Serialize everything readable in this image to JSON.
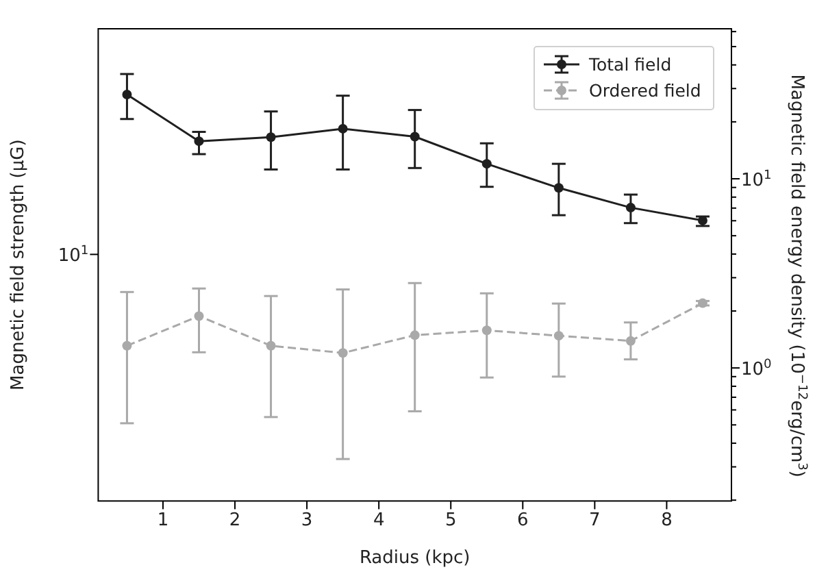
{
  "chart_data": {
    "type": "line",
    "xlabel": "Radius (kpc)",
    "ylabel": "Magnetic field strength (μG)",
    "y2label": "Magnetic field energy density (10$^{−12}$erg/cm$^{3}$)",
    "x": [
      0.5,
      1.5,
      2.5,
      3.5,
      4.5,
      5.5,
      6.5,
      7.5,
      8.5
    ],
    "xlim": [
      0.1,
      8.9
    ],
    "xticks": [
      1,
      2,
      3,
      4,
      5,
      6,
      7,
      8
    ],
    "annotations": [
      "10$^{1}$"
    ],
    "y2lim": [
      0.198,
      62.1
    ],
    "y2ticks": [
      {
        "value": 0.2,
        "label": null
      },
      {
        "value": 0.3,
        "label": null
      },
      {
        "value": 0.4,
        "label": null
      },
      {
        "value": 0.5,
        "label": null
      },
      {
        "value": 0.6,
        "label": null
      },
      {
        "value": 0.7,
        "label": null
      },
      {
        "value": 0.8,
        "label": null
      },
      {
        "value": 0.9,
        "label": null
      },
      {
        "value": 1,
        "label": "10$^{0}$"
      },
      {
        "value": 2,
        "label": null
      },
      {
        "value": 3,
        "label": null
      },
      {
        "value": 4,
        "label": null
      },
      {
        "value": 5,
        "label": null
      },
      {
        "value": 6,
        "label": null
      },
      {
        "value": 7,
        "label": null
      },
      {
        "value": 8,
        "label": null
      },
      {
        "value": 9,
        "label": null
      },
      {
        "value": 10,
        "label": "10$^{1}$"
      },
      {
        "value": 20,
        "label": null
      },
      {
        "value": 30,
        "label": null
      },
      {
        "value": 40,
        "label": null
      },
      {
        "value": 50,
        "label": null
      },
      {
        "value": 60,
        "label": null
      }
    ],
    "log": "y2",
    "grid": false,
    "legend": "top right",
    "marker": "circle",
    "series": [
      {
        "name": "Total field",
        "color": "#1f1f1f",
        "line_style": "solid",
        "axis": "y2",
        "values": [
          27.9,
          15.8,
          16.6,
          18.4,
          16.7,
          12.0,
          8.95,
          7.04,
          6.02
        ],
        "errors": [
          [
            20.7,
            35.8
          ],
          [
            13.5,
            17.7
          ],
          [
            11.2,
            22.7
          ],
          [
            11.2,
            27.5
          ],
          [
            11.4,
            23.1
          ],
          [
            9.07,
            15.4
          ],
          [
            6.42,
            12.0
          ],
          [
            5.83,
            8.25
          ],
          [
            5.63,
            6.32
          ]
        ]
      },
      {
        "name": "Ordered field",
        "color": "#a9a9a9",
        "line_style": "dashed",
        "axis": "y2",
        "values": [
          1.31,
          1.88,
          1.31,
          1.2,
          1.49,
          1.58,
          1.48,
          1.39,
          2.2
        ],
        "errors": [
          [
            0.51,
            2.52
          ],
          [
            1.21,
            2.63
          ],
          [
            0.55,
            2.4
          ],
          [
            0.33,
            2.6
          ],
          [
            0.59,
            2.81
          ],
          [
            0.89,
            2.48
          ],
          [
            0.9,
            2.19
          ],
          [
            1.11,
            1.74
          ],
          [
            2.14,
            2.26
          ]
        ]
      }
    ]
  }
}
